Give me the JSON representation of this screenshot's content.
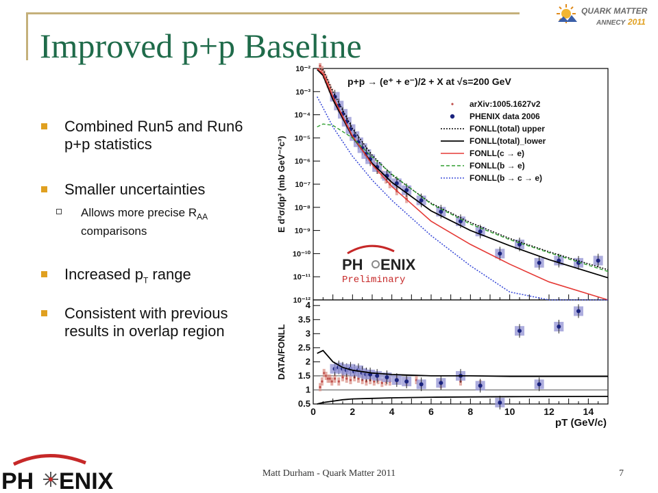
{
  "slide": {
    "title": "Improved p+p Baseline",
    "footer": "Matt Durham - Quark Matter 2011",
    "page_number": "7",
    "bullets": {
      "b1": "Combined Run5 and Run6 p+p statistics",
      "b2": "Smaller uncertainties",
      "b2_sub_main": "Allows more precise R",
      "b2_sub_subscript": "AA",
      "b2_sub_rest": " comparisons",
      "b3_main": "Increased p",
      "b3_subscript": "T",
      "b3_rest": " range",
      "b4": "Consistent with previous results in overlap region"
    }
  },
  "logos": {
    "qm_line1": "QUARK MATTER",
    "qm_line2": "ANNECY",
    "qm_year": "2011",
    "phenix_left": "PH",
    "phenix_right": "ENIX",
    "preliminary": "Preliminary"
  },
  "colors": {
    "title": "#1f6b4a",
    "bullet": "#e0a020",
    "data_points": "#1a237e",
    "syst_box": "#9999d6",
    "arxiv": "#c0504d",
    "fonll_c": "#e53935",
    "fonll_b": "#2e9e2e",
    "fonll_bc": "#3a4bd8"
  },
  "chart_data": [
    {
      "type": "scatter",
      "title": "p+p → (e⁺ + e⁻)/2 + X at √s=200 GeV",
      "ylabel": "E d³σ/dp³ (mb GeV⁻²c³)",
      "xlim": [
        0,
        15
      ],
      "ylim": [
        1e-12,
        0.01
      ],
      "log_y": true,
      "grid": false,
      "legend_position": "upper-right",
      "y_ticks": [
        {
          "value": 0.01,
          "label": "10⁻²"
        },
        {
          "value": 0.001,
          "label": "10⁻³"
        },
        {
          "value": 0.0001,
          "label": "10⁻⁴"
        },
        {
          "value": 1e-05,
          "label": "10⁻⁵"
        },
        {
          "value": 1e-06,
          "label": "10⁻⁶"
        },
        {
          "value": 1e-07,
          "label": "10⁻⁷"
        },
        {
          "value": 1e-08,
          "label": "10⁻⁸"
        },
        {
          "value": 1e-09,
          "label": "10⁻⁹"
        },
        {
          "value": 1e-10,
          "label": "10⁻¹⁰"
        },
        {
          "value": 1e-11,
          "label": "10⁻¹¹"
        },
        {
          "value": 1e-12,
          "label": "10⁻¹²"
        }
      ],
      "series": [
        {
          "name": "arXiv:1005.1627v2",
          "marker": "star",
          "x": [
            0.35,
            0.45,
            0.55,
            0.65,
            0.75,
            0.85,
            0.95,
            1.1,
            1.3,
            1.5,
            1.7,
            1.9,
            2.1,
            2.3,
            2.5,
            2.7,
            2.9,
            3.1,
            3.3,
            3.5,
            3.7,
            3.9,
            4.25,
            4.75
          ],
          "y": [
            0.013,
            0.0085,
            0.0055,
            0.0035,
            0.0022,
            0.0014,
            0.0009,
            0.00045,
            0.0002,
            9e-05,
            4.5e-05,
            2.3e-05,
            1.2e-05,
            6.5e-06,
            3.7e-06,
            2.1e-06,
            1.2e-06,
            7e-07,
            4.2e-07,
            2.6e-07,
            1.6e-07,
            1e-07,
            5e-08,
            2.3e-08
          ]
        },
        {
          "name": "PHENIX data 2006",
          "marker": "circle",
          "x": [
            1.1,
            1.3,
            1.5,
            1.7,
            1.9,
            2.1,
            2.3,
            2.5,
            2.7,
            2.9,
            3.25,
            3.75,
            4.25,
            4.75,
            5.5,
            6.5,
            7.5,
            8.5,
            9.5,
            10.5,
            11.5,
            12.5,
            13.5,
            14.5
          ],
          "y": [
            0.0006,
            0.00025,
            0.00011,
            5e-05,
            2.4e-05,
            1.2e-05,
            6.5e-06,
            3.6e-06,
            2e-06,
            1.2e-06,
            5.5e-07,
            2.3e-07,
            1.1e-07,
            5.5e-08,
            2e-08,
            6.5e-09,
            2.5e-09,
            9e-10,
            1e-10,
            2.5e-10,
            4e-11,
            5e-11,
            4e-11,
            5e-11
          ]
        },
        {
          "name": "FONLL(total) upper",
          "line": "dotted-black",
          "x": [
            0.2,
            0.5,
            1,
            2,
            3,
            4,
            6,
            8,
            10,
            12,
            15
          ],
          "y": [
            0.015,
            0.009,
            0.001,
            2.5e-05,
            1.8e-06,
            2.5e-07,
            1.5e-08,
            2.2e-09,
            4.5e-10,
            1.2e-10,
            2e-11
          ]
        },
        {
          "name": "FONLL(total)_lower",
          "line": "solid-black",
          "x": [
            0.2,
            0.5,
            1,
            2,
            3,
            4,
            6,
            8,
            10,
            12,
            15
          ],
          "y": [
            0.009,
            0.005,
            0.00045,
            1.1e-05,
            8e-07,
            1.2e-07,
            7e-09,
            1e-09,
            2.2e-10,
            5.5e-11,
            9e-12
          ]
        },
        {
          "name": "FONLL(c → e)",
          "line": "solid-red",
          "x": [
            0.2,
            0.5,
            1,
            2,
            3,
            4,
            6,
            8,
            10,
            12,
            15
          ],
          "y": [
            0.01,
            0.006,
            0.0006,
            1.2e-05,
            7e-07,
            8e-08,
            2.5e-09,
            2.5e-10,
            3.5e-11,
            6e-12,
            1e-12
          ]
        },
        {
          "name": "FONLL(b → e)",
          "line": "dashed-green",
          "x": [
            0.2,
            0.5,
            1,
            2,
            3,
            4,
            6,
            8,
            10,
            12,
            15
          ],
          "y": [
            3e-05,
            4e-05,
            3.5e-05,
            1e-05,
            1.5e-06,
            2.7e-07,
            1.4e-08,
            1.9e-09,
            4e-10,
            1.1e-10,
            1.7e-11
          ]
        },
        {
          "name": "FONLL(b → c → e)",
          "line": "dotted-blue",
          "x": [
            0.2,
            0.5,
            1,
            2,
            3,
            4,
            6,
            8,
            10,
            12,
            15
          ],
          "y": [
            0.0006,
            0.0002,
            3e-05,
            1.6e-06,
            1.5e-07,
            2e-08,
            6e-10,
            3e-11,
            2.2e-12,
            1e-12,
            1e-12
          ]
        }
      ]
    },
    {
      "type": "scatter",
      "xlabel": "pT (GeV/c)",
      "ylabel": "DATA/FONLL",
      "xlim": [
        0,
        15
      ],
      "ylim": [
        0.5,
        4.2
      ],
      "grid": false,
      "x_ticks": [
        "0",
        "2",
        "4",
        "6",
        "8",
        "10",
        "12",
        "14"
      ],
      "y_ticks": [
        "0.5",
        "1",
        "1.5",
        "2",
        "2.5",
        "3",
        "3.5",
        "4"
      ],
      "reference_lines": [
        1.0,
        1.5
      ],
      "series": [
        {
          "name": "arXiv:1005.1627v2",
          "marker": "star",
          "x": [
            0.35,
            0.45,
            0.55,
            0.65,
            0.75,
            0.85,
            0.95,
            1.1,
            1.3,
            1.5,
            1.7,
            1.9,
            2.1,
            2.3,
            2.5,
            2.7,
            2.9,
            3.1,
            3.3,
            3.5,
            3.7,
            3.9,
            4.25,
            4.75,
            5.25,
            6.5,
            7.5,
            8.5
          ],
          "y": [
            1.1,
            1.3,
            1.6,
            1.5,
            1.4,
            1.4,
            1.3,
            1.4,
            1.3,
            1.45,
            1.4,
            1.35,
            1.45,
            1.4,
            1.35,
            1.3,
            1.35,
            1.3,
            1.35,
            1.25,
            1.3,
            1.3,
            1.35,
            1.3,
            1.35,
            1.2,
            1.3,
            1.2
          ]
        },
        {
          "name": "PHENIX data 2006",
          "marker": "circle",
          "x": [
            1.1,
            1.3,
            1.5,
            1.7,
            1.9,
            2.1,
            2.3,
            2.5,
            2.7,
            2.9,
            3.25,
            3.75,
            4.25,
            4.75,
            5.5,
            6.5,
            7.5,
            8.5,
            9.5,
            10.5,
            11.5,
            12.5,
            13.5
          ],
          "y": [
            1.75,
            1.8,
            1.75,
            1.7,
            1.75,
            1.65,
            1.7,
            1.6,
            1.55,
            1.55,
            1.5,
            1.45,
            1.35,
            1.3,
            1.2,
            1.25,
            1.5,
            1.15,
            0.55,
            3.1,
            1.2,
            3.25,
            3.8
          ]
        },
        {
          "name": "FONLL(total) upper",
          "line": "solid-black",
          "x": [
            0.2,
            0.5,
            1,
            1.5,
            2,
            3,
            4,
            6,
            8,
            10,
            15
          ],
          "y": [
            2.3,
            2.4,
            2.0,
            1.8,
            1.7,
            1.6,
            1.55,
            1.5,
            1.5,
            1.48,
            1.48
          ]
        },
        {
          "name": "FONLL(total)_lower",
          "line": "solid-black",
          "x": [
            0.2,
            0.5,
            1,
            1.5,
            2,
            3,
            4,
            6,
            8,
            10,
            15
          ],
          "y": [
            0.5,
            0.55,
            0.6,
            0.65,
            0.68,
            0.7,
            0.72,
            0.74,
            0.75,
            0.76,
            0.77
          ]
        }
      ]
    }
  ]
}
